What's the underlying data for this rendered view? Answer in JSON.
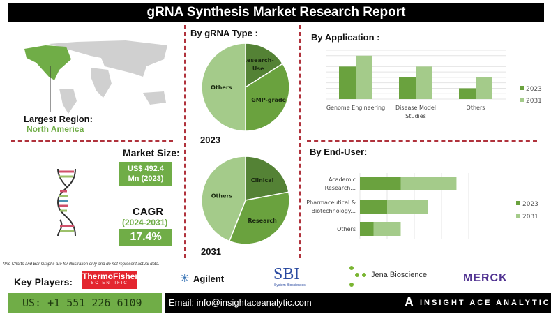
{
  "title": "gRNA Synthesis Market Research Report",
  "region": {
    "label": "Largest Region:",
    "value": "North America"
  },
  "market_size": {
    "label": "Market Size:",
    "value_line1": "US$ 492.4",
    "value_line2": "Mn (2023)"
  },
  "cagr": {
    "label": "CAGR",
    "period": "(2024-2031)",
    "value": "17.4%"
  },
  "colors": {
    "dark": "#548235",
    "mid": "#6aa23e",
    "light": "#a4cb8a",
    "accent": "#70ad47",
    "divider": "#b0323c"
  },
  "chart_data": [
    {
      "type": "pie",
      "title": "By gRNA Type :",
      "caption": "2023",
      "labels": [
        "Research-Use",
        "GMP-grade",
        "Others"
      ],
      "values": [
        16,
        34,
        50
      ]
    },
    {
      "type": "pie",
      "caption": "2031",
      "labels": [
        "Clinical",
        "Research",
        "Others"
      ],
      "values": [
        22,
        34,
        44
      ]
    },
    {
      "type": "bar",
      "title": "By Application :",
      "categories": [
        "Genome Engineering",
        "Disease Model Studies",
        "Others"
      ],
      "series": [
        {
          "name": "2023",
          "values": [
            6,
            4,
            2
          ]
        },
        {
          "name": "2031",
          "values": [
            8,
            6,
            4
          ]
        }
      ],
      "ylim": [
        0,
        9
      ],
      "legend": "right"
    },
    {
      "type": "bar",
      "orientation": "horizontal",
      "stacked": true,
      "title": "By End-User:",
      "categories": [
        "Academic Research...",
        "Pharmaceutical & Biotechnology...",
        "Others"
      ],
      "series": [
        {
          "name": "2023",
          "values": [
            1.5,
            1.0,
            0.5
          ]
        },
        {
          "name": "2031",
          "values": [
            2.05,
            1.5,
            1.0
          ]
        }
      ],
      "xlim": [
        0,
        4
      ],
      "legend": "right"
    }
  ],
  "disclaimer": "*Pie Charts and Bar Graphs are for illustration only and do not represent actual data.",
  "key_players": {
    "label": "Key Players:",
    "players": [
      "ThermoFisher",
      "SCIENTIFIC",
      "Agilent",
      "SBI",
      "System Biosciences",
      "Jena Bioscience",
      "MERCK"
    ]
  },
  "footer": {
    "phone": "US: +1 551 226 6109",
    "email": "Email: info@insightaceanalytic.com",
    "brand": "INSIGHT ACE ANALYTIC"
  }
}
